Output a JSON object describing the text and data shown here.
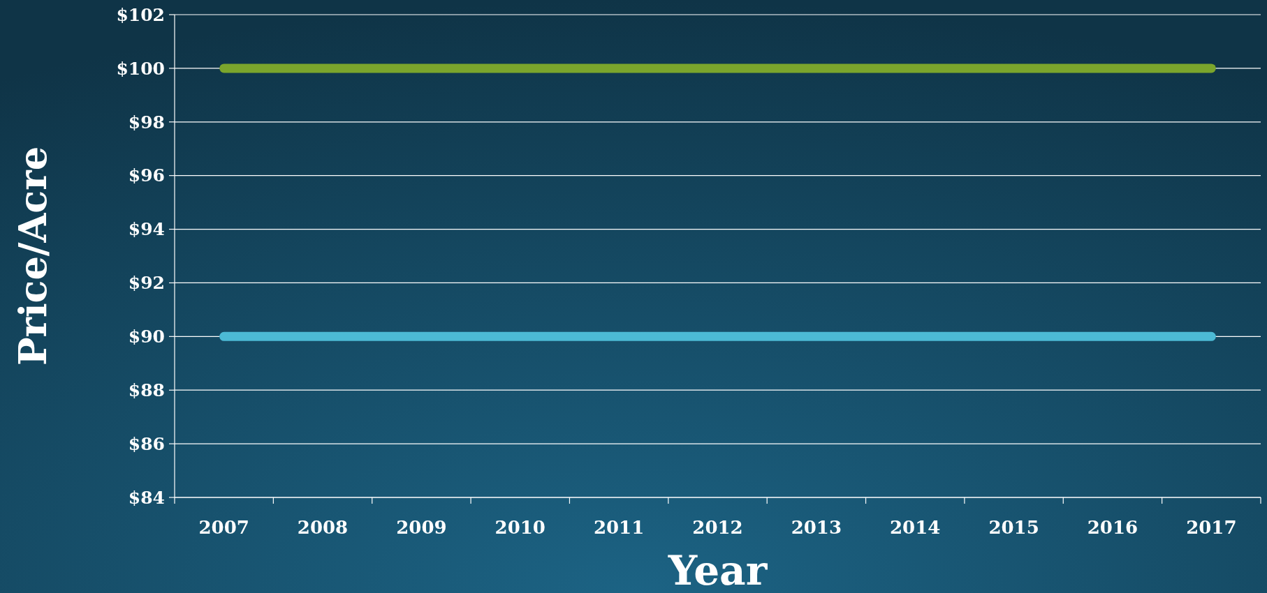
{
  "chart_data": {
    "type": "line",
    "xlabel": "Year",
    "ylabel": "Price/Acre",
    "categories": [
      "2007",
      "2008",
      "2009",
      "2010",
      "2011",
      "2012",
      "2013",
      "2014",
      "2015",
      "2016",
      "2017"
    ],
    "series": [
      {
        "color": "#7ba52c",
        "values": [
          100,
          100,
          100,
          100,
          100,
          100,
          100,
          100,
          100,
          100,
          100
        ]
      },
      {
        "color": "#4cbad5",
        "values": [
          90,
          90,
          90,
          90,
          90,
          90,
          90,
          90,
          90,
          90,
          90
        ]
      }
    ],
    "ylim": [
      84,
      102
    ],
    "yticks": [
      {
        "value": 84,
        "label": "$84"
      },
      {
        "value": 86,
        "label": "$86"
      },
      {
        "value": 88,
        "label": "$88"
      },
      {
        "value": 90,
        "label": "$90"
      },
      {
        "value": 92,
        "label": "$92"
      },
      {
        "value": 94,
        "label": "$94"
      },
      {
        "value": 96,
        "label": "$96"
      },
      {
        "value": 98,
        "label": "$98"
      },
      {
        "value": 100,
        "label": "$100"
      },
      {
        "value": 102,
        "label": "$102"
      }
    ],
    "grid": "y",
    "marker": "none",
    "line_style": "solid"
  }
}
